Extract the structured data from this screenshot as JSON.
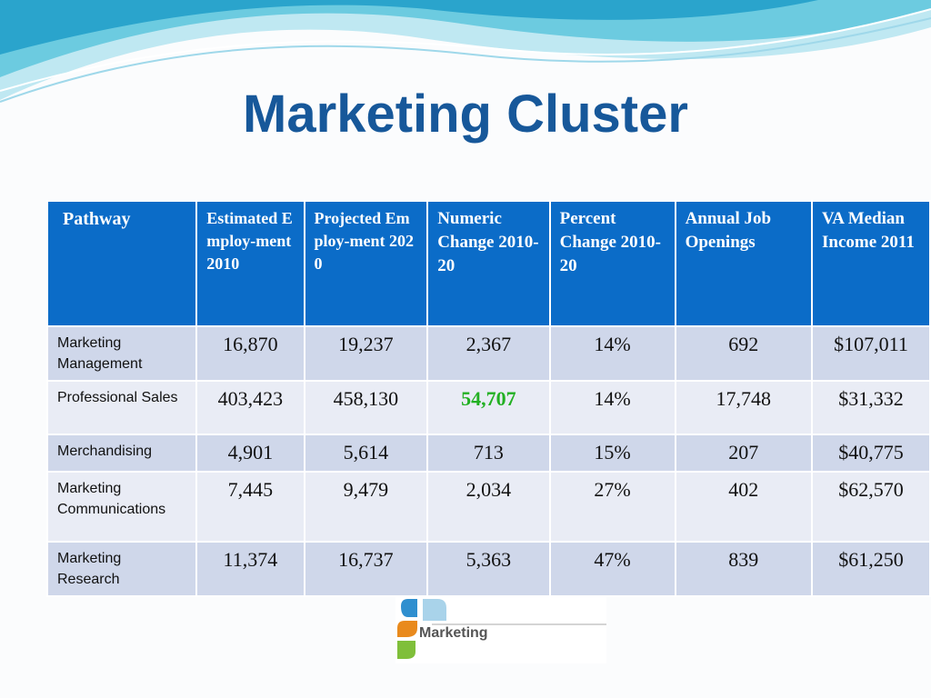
{
  "title": "Marketing Cluster",
  "table": {
    "header": [
      "Pathway",
      "Estimated Employ-ment 2010",
      "Projected Employ-ment 2020",
      "Numeric Change 2010-20",
      "Percent Change 2010-20",
      "Annual Job Openings",
      "VA Median Income 2011"
    ],
    "rows": [
      [
        "Marketing Management",
        "16,870",
        "19,237",
        "2,367",
        "14%",
        "692",
        "$107,011"
      ],
      [
        "Professional Sales",
        "403,423",
        "458,130",
        "54,707",
        "14%",
        "17,748",
        "$31,332"
      ],
      [
        "Merchandising",
        "4,901",
        "5,614",
        "713",
        "15%",
        "207",
        "$40,775"
      ],
      [
        "Marketing Communications",
        "7,445",
        "9,479",
        "2,034",
        "27%",
        "402",
        "$62,570"
      ],
      [
        "Marketing Research",
        "11,374",
        "16,737",
        "5,363",
        "47%",
        "839",
        "$61,250"
      ]
    ]
  },
  "logo": {
    "label": "Marketing"
  }
}
